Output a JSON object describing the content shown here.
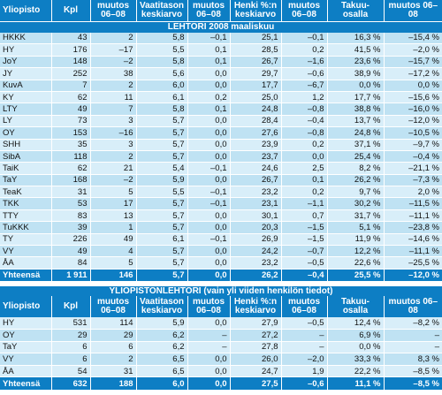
{
  "table1": {
    "columns": [
      "Yliopisto",
      "Kpl",
      "muutos 06–08",
      "Vaatitason keskiarvo",
      "muutos 06–08",
      "Henki %:n keskiarvo",
      "muutos 06–08",
      "Takuu- osalla",
      "muutos 06–08"
    ],
    "title": "LEHTORI 2008 maaliskuu",
    "rows": [
      [
        "HKKK",
        "43",
        "2",
        "5,8",
        "–0,1",
        "25,1",
        "–0,1",
        "16,3 %",
        "–15,4 %"
      ],
      [
        "HY",
        "176",
        "–17",
        "5,5",
        "0,1",
        "28,5",
        "0,2",
        "41,5 %",
        "–2,0 %"
      ],
      [
        "JoY",
        "148",
        "–2",
        "5,8",
        "0,1",
        "26,7",
        "–1,6",
        "23,6 %",
        "–15,7 %"
      ],
      [
        "JY",
        "252",
        "38",
        "5,6",
        "0,0",
        "29,7",
        "–0,6",
        "38,9 %",
        "–17,2 %"
      ],
      [
        "KuvA",
        "7",
        "2",
        "6,0",
        "0,0",
        "17,7",
        "–6,7",
        "0,0 %",
        "0,0 %"
      ],
      [
        "KY",
        "62",
        "11",
        "6,1",
        "0,2",
        "25,0",
        "1,2",
        "17,7 %",
        "–15,6 %"
      ],
      [
        "LTY",
        "49",
        "7",
        "5,8",
        "0,1",
        "24,8",
        "–0,8",
        "38,8 %",
        "–16,0 %"
      ],
      [
        "LY",
        "73",
        "3",
        "5,7",
        "0,0",
        "28,4",
        "–0,4",
        "13,7 %",
        "–12,0 %"
      ],
      [
        "OY",
        "153",
        "–16",
        "5,7",
        "0,0",
        "27,6",
        "–0,8",
        "24,8 %",
        "–10,5 %"
      ],
      [
        "SHH",
        "35",
        "3",
        "5,7",
        "0,0",
        "23,9",
        "0,2",
        "37,1 %",
        "–9,7 %"
      ],
      [
        "SibA",
        "118",
        "2",
        "5,7",
        "0,0",
        "23,7",
        "0,0",
        "25,4 %",
        "–0,4 %"
      ],
      [
        "TaiK",
        "62",
        "21",
        "5,4",
        "–0,1",
        "24,6",
        "2,5",
        "8,2 %",
        "–21,1 %"
      ],
      [
        "TaY",
        "168",
        "–2",
        "5,9",
        "0,0",
        "26,7",
        "0,1",
        "26,2 %",
        "–7,3 %"
      ],
      [
        "TeaK",
        "31",
        "5",
        "5,5",
        "–0,1",
        "23,2",
        "0,2",
        "9,7 %",
        "2,0 %"
      ],
      [
        "TKK",
        "53",
        "17",
        "5,7",
        "–0,1",
        "23,1",
        "–1,1",
        "30,2 %",
        "–11,5 %"
      ],
      [
        "TTY",
        "83",
        "13",
        "5,7",
        "0,0",
        "30,1",
        "0,7",
        "31,7 %",
        "–11,1 %"
      ],
      [
        "TuKKK",
        "39",
        "1",
        "5,7",
        "0,0",
        "20,3",
        "–1,5",
        "5,1 %",
        "–23,8 %"
      ],
      [
        "TY",
        "226",
        "49",
        "6,1",
        "–0,1",
        "26,9",
        "–1,5",
        "11,9 %",
        "–14,6 %"
      ],
      [
        "VY",
        "49",
        "4",
        "5,7",
        "0,0",
        "24,2",
        "–0,7",
        "12,2 %",
        "–11,1 %"
      ],
      [
        "ÅA",
        "84",
        "5",
        "5,7",
        "0,0",
        "23,2",
        "–0,5",
        "22,6 %",
        "–25,5 %"
      ]
    ],
    "total": [
      "Yhteensä",
      "1 911",
      "146",
      "5,7",
      "0,0",
      "26,2",
      "–0,4",
      "25,5 %",
      "–12,0 %"
    ]
  },
  "table2": {
    "title": "YLIOPISTONLEHTORI (vain yli viiden henkilön tiedot)",
    "columns": [
      "Yliopisto",
      "Kpl",
      "muutos 06–08",
      "Vaatitason keskiarvo",
      "muutos 06–08",
      "Henki %:n keskiarvo",
      "muutos 06–08",
      "Takuu- osalla",
      "muutos 06–08"
    ],
    "rows": [
      [
        "HY",
        "531",
        "114",
        "5,9",
        "0,0",
        "27,9",
        "–0,5",
        "12,4 %",
        "–8,2 %"
      ],
      [
        "OY",
        "29",
        "29",
        "6,2",
        "–",
        "27,2",
        "–",
        "6,9 %",
        "–"
      ],
      [
        "TaY",
        "6",
        "6",
        "6,2",
        "–",
        "27,8",
        "–",
        "0,0 %",
        "–"
      ],
      [
        "VY",
        "6",
        "2",
        "6,5",
        "0,0",
        "26,0",
        "–2,0",
        "33,3 %",
        "8,3 %"
      ],
      [
        "ÅA",
        "54",
        "31",
        "6,5",
        "0,0",
        "24,7",
        "1,9",
        "22,2 %",
        "–8,5 %"
      ]
    ],
    "total": [
      "Yhteensä",
      "632",
      "188",
      "6,0",
      "0,0",
      "27,5",
      "–0,6",
      "11,1 %",
      "–8,5 %"
    ]
  }
}
